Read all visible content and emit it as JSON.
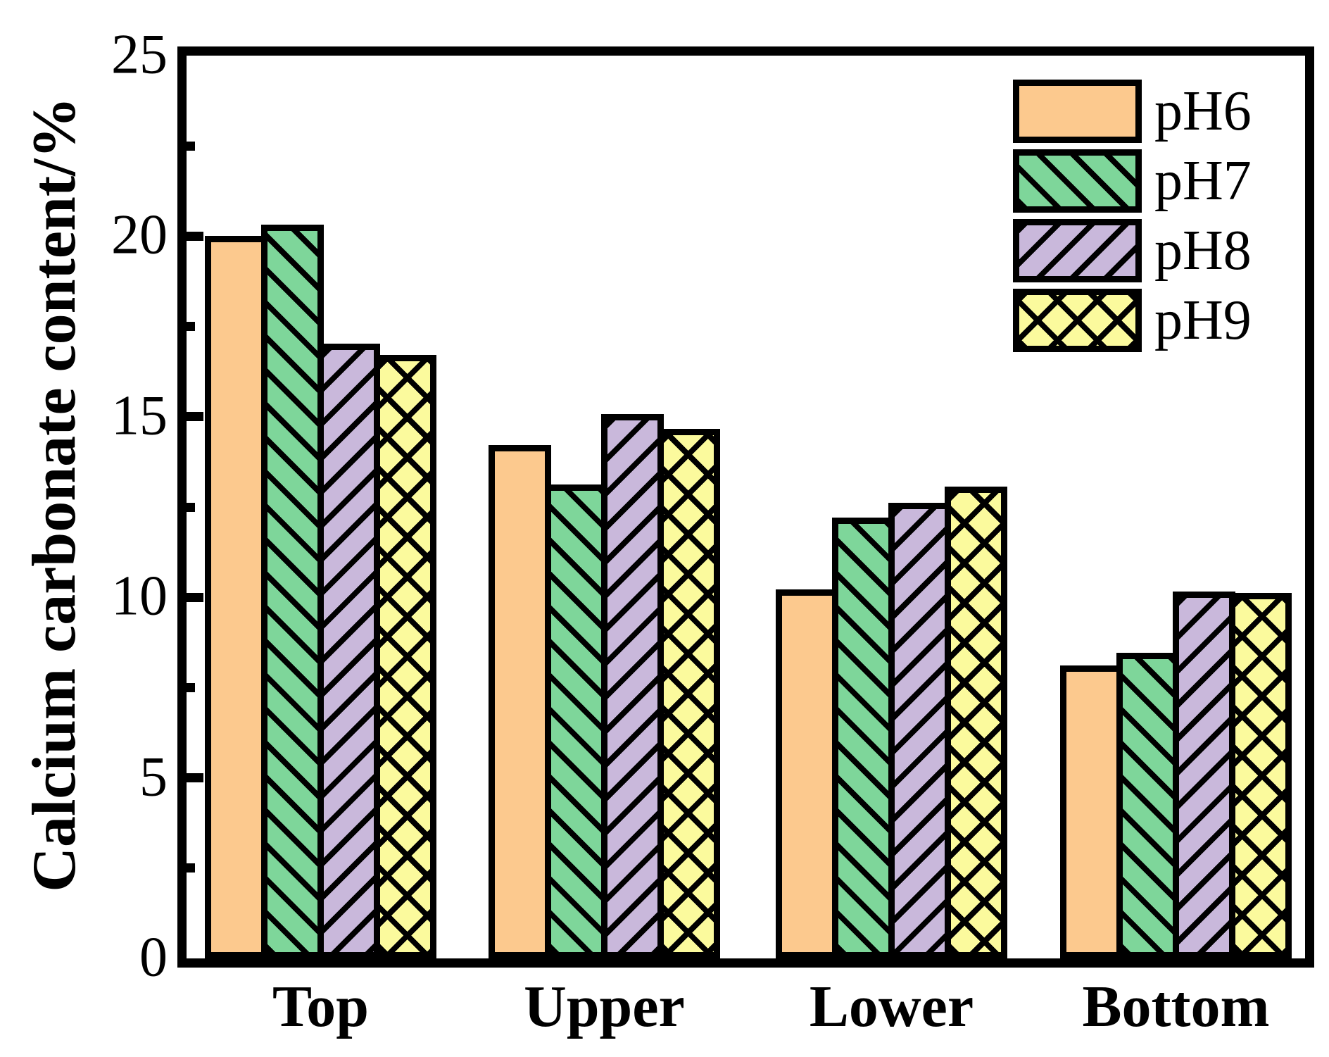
{
  "chart_data": {
    "type": "bar",
    "title": "",
    "xlabel": "",
    "ylabel": "Calcium carbonate content/%",
    "ylim": [
      0,
      25
    ],
    "yticks_major": [
      0,
      5,
      10,
      15,
      20,
      25
    ],
    "yticks_minor": [
      2.5,
      7.5,
      12.5,
      17.5,
      22.5
    ],
    "grid": false,
    "legend_position": "top-right-inside",
    "background_color": "#FFFFFF",
    "axis_color": "#000000",
    "bar_outline_color": "#000000",
    "categories": [
      "Top",
      "Upper",
      "Lower",
      "Bottom"
    ],
    "series": [
      {
        "name": "pH6",
        "color": "#FCC98E",
        "hatch": "none",
        "values": [
          19.9,
          14.1,
          10.1,
          8.0
        ]
      },
      {
        "name": "pH7",
        "color": "#7ED69A",
        "hatch": "diagonal-up",
        "values": [
          20.2,
          13.0,
          12.1,
          8.35
        ]
      },
      {
        "name": "pH8",
        "color": "#C9B8DB",
        "hatch": "diagonal-down",
        "values": [
          16.9,
          14.95,
          12.5,
          10.05
        ]
      },
      {
        "name": "pH9",
        "color": "#FBFA9D",
        "hatch": "crosshatch",
        "values": [
          16.6,
          14.55,
          12.95,
          10.0
        ]
      }
    ]
  }
}
